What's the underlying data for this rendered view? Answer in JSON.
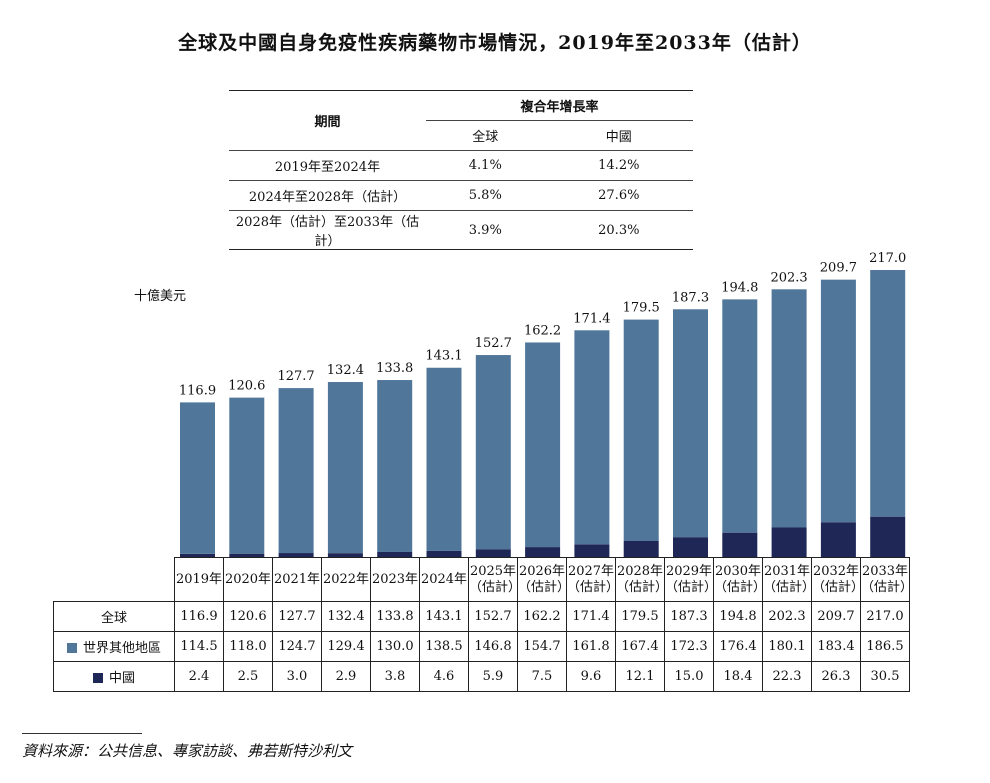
{
  "title": "全球及中國自身免疫性疾病藥物市場情況，2019年至2033年（估計）",
  "cagr_table": {
    "col_period": "期間",
    "col_group": "複合年增長率",
    "col_global": "全球",
    "col_china": "中國",
    "rows": [
      {
        "period": "2019年至2024年",
        "global": "4.1%",
        "china": "14.2%"
      },
      {
        "period": "2024年至2028年（估計）",
        "global": "5.8%",
        "china": "27.6%"
      },
      {
        "period": "2028年（估計）至2033年（估計）",
        "global": "3.9%",
        "china": "20.3%"
      }
    ]
  },
  "unit_label": "十億美元",
  "colors": {
    "rest_of_world": "#50769A",
    "china": "#1F2757"
  },
  "chart_data": {
    "type": "bar",
    "stacked": true,
    "categories": [
      "2019年",
      "2020年",
      "2021年",
      "2022年",
      "2023年",
      "2024年",
      "2025年\n（估計）",
      "2026年\n（估計）",
      "2027年\n（估計）",
      "2028年\n（估計）",
      "2029年\n（估計）",
      "2030年\n（估計）",
      "2031年\n（估計）",
      "2032年\n（估計）",
      "2033年\n（估計）"
    ],
    "totals_label": "全球",
    "totals": [
      "116.9",
      "120.6",
      "127.7",
      "132.4",
      "133.8",
      "143.1",
      "152.7",
      "162.2",
      "171.4",
      "179.5",
      "187.3",
      "194.8",
      "202.3",
      "209.7",
      "217.0"
    ],
    "series": [
      {
        "name": "世界其他地區",
        "values": [
          114.5,
          118.0,
          124.7,
          129.4,
          130.0,
          138.5,
          146.8,
          154.7,
          161.8,
          167.4,
          172.3,
          176.4,
          180.1,
          183.4,
          186.5
        ],
        "labels": [
          "114.5",
          "118.0",
          "124.7",
          "129.4",
          "130.0",
          "138.5",
          "146.8",
          "154.7",
          "161.8",
          "167.4",
          "172.3",
          "176.4",
          "180.1",
          "183.4",
          "186.5"
        ]
      },
      {
        "name": "中國",
        "values": [
          2.4,
          2.5,
          3.0,
          2.9,
          3.8,
          4.6,
          5.9,
          7.5,
          9.6,
          12.1,
          15.0,
          18.4,
          22.3,
          26.3,
          30.5
        ],
        "labels": [
          "2.4",
          "2.5",
          "3.0",
          "2.9",
          "3.8",
          "4.6",
          "5.9",
          "7.5",
          "9.6",
          "12.1",
          "15.0",
          "18.4",
          "22.3",
          "26.3",
          "30.5"
        ]
      }
    ],
    "ylabel": "十億美元",
    "ylim": [
      0,
      217
    ]
  },
  "source": "資料來源：公共信息、專家訪談、弗若斯特沙利文"
}
